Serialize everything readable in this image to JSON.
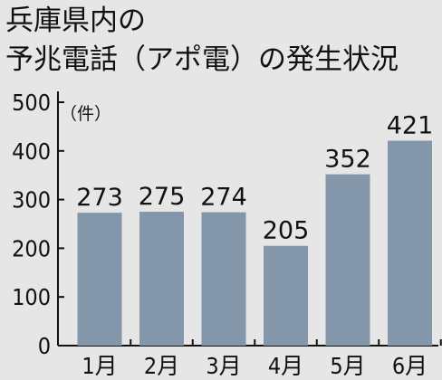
{
  "chart_data": {
    "type": "bar",
    "title_lines": [
      "兵庫県内の",
      "予兆電話（アポ電）の発生状況"
    ],
    "unit_label": "（件）",
    "categories": [
      "1月",
      "2月",
      "3月",
      "4月",
      "5月",
      "6月"
    ],
    "values": [
      273,
      275,
      274,
      205,
      352,
      421
    ],
    "ylim": [
      0,
      500
    ],
    "yticks": [
      0,
      100,
      200,
      300,
      400,
      500
    ],
    "grid": false,
    "legend": "none",
    "bar_color": "#8496a9",
    "background_color": "#e6e6e6"
  }
}
